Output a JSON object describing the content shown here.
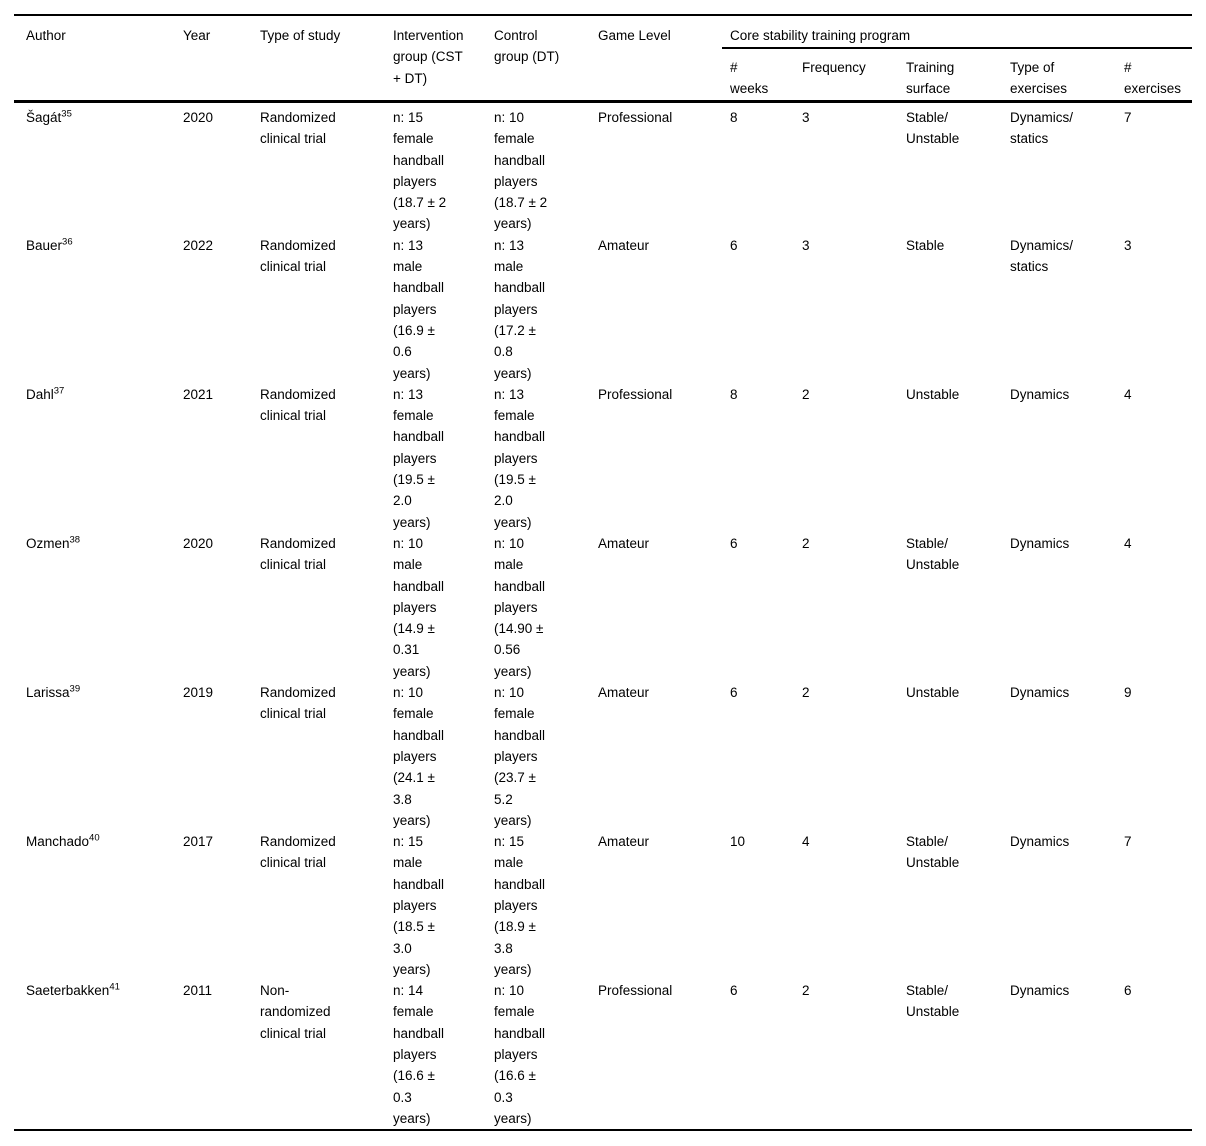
{
  "table": {
    "group_header": "Core stability training program",
    "columns": {
      "author": "Author",
      "year": "Year",
      "type_of_study": "Type of study",
      "intervention_group": "Intervention\ngroup (CST\n+ DT)",
      "control_group": "Control\ngroup (DT)",
      "game_level": "Game Level",
      "weeks": "#\nweeks",
      "frequency": "Frequency",
      "training_surface": "Training\nsurface",
      "type_of_exercises": "Type of\nexercises",
      "num_exercises": "#\nexercises"
    },
    "rows": [
      {
        "author": "Šagát",
        "ref": "35",
        "year": "2020",
        "study": "Randomized\nclinical trial",
        "intervention": "n: 15\nfemale\nhandball\nplayers\n(18.7 ± 2\nyears)",
        "control": "n: 10\nfemale\nhandball\nplayers\n(18.7 ± 2\nyears)",
        "level": "Professional",
        "weeks": "8",
        "frequency": "3",
        "surface": "Stable/\nUnstable",
        "ex_type": "Dynamics/\nstatics",
        "ex_count": "7"
      },
      {
        "author": "Bauer",
        "ref": "36",
        "year": "2022",
        "study": "Randomized\nclinical trial",
        "intervention": "n: 13\nmale\nhandball\nplayers\n(16.9 ±\n0.6\nyears)",
        "control": "n: 13\nmale\nhandball\nplayers\n(17.2 ±\n0.8\nyears)",
        "level": "Amateur",
        "weeks": "6",
        "frequency": "3",
        "surface": "Stable",
        "ex_type": "Dynamics/\nstatics",
        "ex_count": "3"
      },
      {
        "author": "Dahl",
        "ref": "37",
        "year": "2021",
        "study": "Randomized\nclinical trial",
        "intervention": "n: 13\nfemale\nhandball\nplayers\n(19.5 ±\n2.0\nyears)",
        "control": "n: 13\nfemale\nhandball\nplayers\n(19.5 ±\n2.0\nyears)",
        "level": "Professional",
        "weeks": "8",
        "frequency": "2",
        "surface": "Unstable",
        "ex_type": "Dynamics",
        "ex_count": "4"
      },
      {
        "author": "Ozmen",
        "ref": "38",
        "year": "2020",
        "study": "Randomized\nclinical trial",
        "intervention": "n: 10\nmale\nhandball\nplayers\n(14.9 ±\n0.31\nyears)",
        "control": "n: 10\nmale\nhandball\nplayers\n(14.90 ±\n0.56\nyears)",
        "level": "Amateur",
        "weeks": "6",
        "frequency": "2",
        "surface": "Stable/\nUnstable",
        "ex_type": "Dynamics",
        "ex_count": "4"
      },
      {
        "author": "Larissa",
        "ref": "39",
        "year": "2019",
        "study": "Randomized\nclinical trial",
        "intervention": "n: 10\nfemale\nhandball\nplayers\n(24.1 ±\n3.8\nyears)",
        "control": "n: 10\nfemale\nhandball\nplayers\n(23.7 ±\n5.2\nyears)",
        "level": "Amateur",
        "weeks": "6",
        "frequency": "2",
        "surface": "Unstable",
        "ex_type": "Dynamics",
        "ex_count": "9"
      },
      {
        "author": "Manchado",
        "ref": "40",
        "year": "2017",
        "study": "Randomized\nclinical trial",
        "intervention": "n: 15\nmale\nhandball\nplayers\n(18.5 ±\n3.0\nyears)",
        "control": "n: 15\nmale\nhandball\nplayers\n(18.9 ±\n3.8\nyears)",
        "level": "Amateur",
        "weeks": "10",
        "frequency": "4",
        "surface": "Stable/\nUnstable",
        "ex_type": "Dynamics",
        "ex_count": "7"
      },
      {
        "author": "Saeterbakken",
        "ref": "41",
        "year": "2011",
        "study": "Non-\nrandomized\nclinical trial",
        "intervention": "n: 14\nfemale\nhandball\nplayers\n(16.6 ±\n0.3\nyears)",
        "control": "n: 10\nfemale\nhandball\nplayers\n(16.6 ±\n0.3\nyears)",
        "level": "Professional",
        "weeks": "6",
        "frequency": "2",
        "surface": "Stable/\nUnstable",
        "ex_type": "Dynamics",
        "ex_count": "6"
      }
    ]
  }
}
